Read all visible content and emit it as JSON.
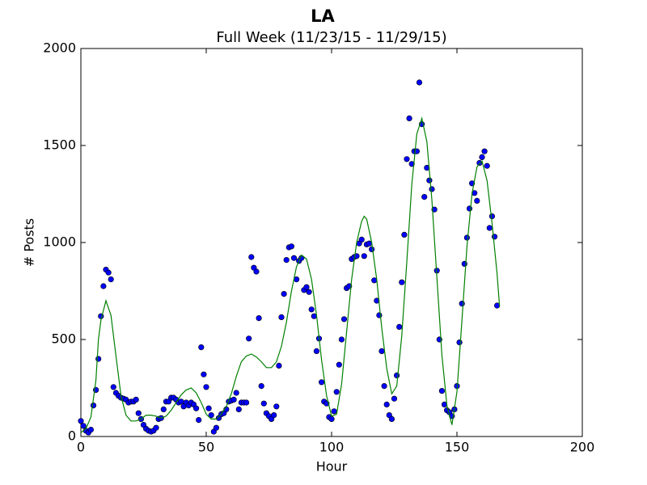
{
  "chart_data": {
    "type": "scatter",
    "title": "LA",
    "subtitle": "Full Week (11/23/15 - 11/29/15)",
    "x_label": "Hour",
    "y_label": "# Posts",
    "xlim": [
      0,
      200
    ],
    "xticks": [
      0,
      50,
      100,
      150,
      200
    ],
    "ylim": [
      0,
      2000
    ],
    "yticks": [
      0,
      500,
      1000,
      1500,
      2000
    ],
    "grid": false,
    "series": [
      {
        "type": "scatter",
        "color": "#0000ff",
        "x": [
          0,
          1,
          2,
          3,
          4,
          5,
          6,
          7,
          8,
          9,
          10,
          11,
          12,
          13,
          14,
          15,
          16,
          17,
          18,
          19,
          20,
          21,
          22,
          23,
          24,
          25,
          26,
          27,
          28,
          29,
          30,
          31,
          32,
          33,
          34,
          35,
          36,
          37,
          38,
          39,
          40,
          41,
          42,
          43,
          44,
          45,
          46,
          47,
          48,
          49,
          50,
          51,
          52,
          53,
          54,
          55,
          56,
          57,
          58,
          59,
          60,
          61,
          62,
          63,
          64,
          65,
          66,
          67,
          68,
          69,
          70,
          71,
          72,
          73,
          74,
          75,
          76,
          77,
          78,
          79,
          80,
          81,
          82,
          83,
          84,
          85,
          86,
          87,
          88,
          89,
          90,
          91,
          92,
          93,
          94,
          95,
          96,
          97,
          98,
          99,
          100,
          101,
          102,
          103,
          104,
          105,
          106,
          107,
          108,
          109,
          110,
          111,
          112,
          113,
          114,
          115,
          116,
          117,
          118,
          119,
          120,
          121,
          122,
          123,
          124,
          125,
          126,
          127,
          128,
          129,
          130,
          131,
          132,
          133,
          134,
          135,
          136,
          137,
          138,
          139,
          140,
          141,
          142,
          143,
          144,
          145,
          146,
          147,
          148,
          149,
          150,
          151,
          152,
          153,
          154,
          155,
          156,
          157,
          158,
          159,
          160,
          161,
          162,
          163,
          164,
          165,
          166
        ],
        "values": [
          80,
          55,
          30,
          20,
          35,
          160,
          240,
          400,
          620,
          775,
          860,
          845,
          810,
          255,
          225,
          210,
          200,
          195,
          190,
          175,
          180,
          180,
          190,
          120,
          90,
          60,
          40,
          30,
          25,
          30,
          45,
          90,
          95,
          140,
          180,
          180,
          200,
          200,
          190,
          175,
          180,
          155,
          175,
          160,
          175,
          165,
          145,
          85,
          460,
          320,
          255,
          145,
          110,
          25,
          45,
          95,
          115,
          120,
          140,
          180,
          185,
          190,
          225,
          140,
          175,
          175,
          175,
          505,
          925,
          870,
          850,
          610,
          260,
          170,
          120,
          105,
          90,
          110,
          155,
          365,
          615,
          735,
          910,
          975,
          980,
          920,
          810,
          905,
          920,
          755,
          770,
          745,
          655,
          620,
          440,
          505,
          280,
          180,
          170,
          100,
          90,
          130,
          230,
          370,
          500,
          605,
          765,
          775,
          915,
          925,
          930,
          995,
          1015,
          930,
          990,
          995,
          965,
          805,
          700,
          625,
          440,
          260,
          165,
          110,
          90,
          195,
          315,
          565,
          795,
          1040,
          1430,
          1640,
          1405,
          1470,
          1470,
          1825,
          1610,
          1235,
          1385,
          1320,
          1275,
          1170,
          855,
          500,
          235,
          165,
          135,
          125,
          105,
          140,
          260,
          485,
          685,
          890,
          1025,
          1175,
          1305,
          1255,
          1215,
          1410,
          1440,
          1470,
          1395,
          1075,
          1135,
          1030,
          675
        ]
      },
      {
        "type": "line",
        "color": "#008000",
        "x": [
          0,
          2,
          4,
          6,
          7,
          8,
          10,
          12,
          14,
          16,
          18,
          20,
          22,
          24,
          26,
          28,
          30,
          32,
          34,
          36,
          38,
          40,
          42,
          44,
          46,
          48,
          50,
          52,
          54,
          56,
          58,
          60,
          62,
          64,
          66,
          68,
          70,
          72,
          74,
          76,
          78,
          80,
          82,
          84,
          86,
          88,
          90,
          92,
          94,
          96,
          98,
          100,
          102,
          104,
          106,
          108,
          110,
          112,
          113,
          114,
          116,
          118,
          120,
          122,
          124,
          126,
          128,
          130,
          132,
          134,
          136,
          138,
          140,
          142,
          144,
          146,
          148,
          150,
          152,
          154,
          156,
          158,
          160,
          162,
          164,
          166,
          167
        ],
        "values": [
          20,
          40,
          100,
          290,
          500,
          600,
          700,
          625,
          415,
          210,
          110,
          80,
          80,
          90,
          110,
          110,
          105,
          95,
          105,
          135,
          175,
          215,
          240,
          250,
          225,
          175,
          115,
          90,
          90,
          115,
          155,
          220,
          310,
          385,
          415,
          425,
          410,
          385,
          355,
          355,
          385,
          465,
          590,
          750,
          875,
          935,
          915,
          810,
          625,
          395,
          210,
          105,
          115,
          270,
          540,
          810,
          1000,
          1110,
          1135,
          1120,
          1000,
          810,
          560,
          350,
          220,
          260,
          520,
          900,
          1300,
          1560,
          1640,
          1520,
          1220,
          820,
          420,
          160,
          60,
          230,
          600,
          980,
          1250,
          1390,
          1420,
          1320,
          1100,
          840,
          670
        ]
      }
    ]
  }
}
